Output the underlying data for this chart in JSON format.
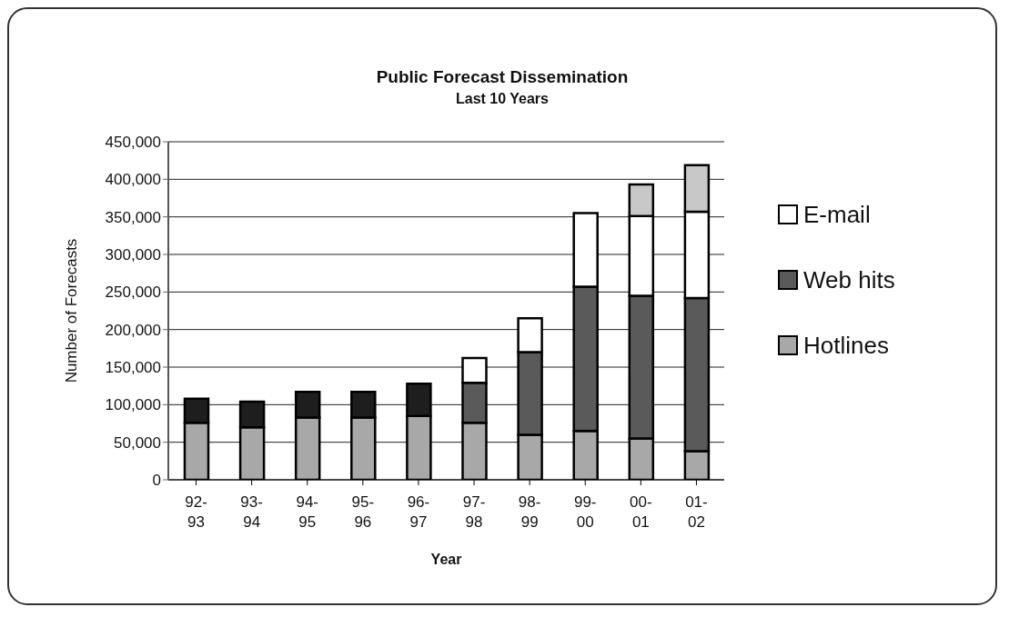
{
  "chart_data": {
    "type": "bar",
    "title": "Public Forecast Dissemination",
    "subtitle": "Last 10 Years",
    "xlabel": "Year",
    "ylabel": "Number of Forecasts",
    "categories": [
      "92-93",
      "93-94",
      "94-95",
      "95-96",
      "96-97",
      "97-98",
      "98-99",
      "99-00",
      "00-01",
      "01-02"
    ],
    "stacked": true,
    "series": [
      {
        "name": "Hotlines",
        "color": "#a8a8a8",
        "values": [
          76000,
          70000,
          83000,
          83000,
          85000,
          76000,
          60000,
          65000,
          55000,
          38000
        ]
      },
      {
        "color": "#1e1e1e",
        "values": [
          32000,
          34000,
          34000,
          34000,
          43000,
          null,
          null,
          null,
          null,
          null
        ]
      },
      {
        "name": "Web hits",
        "color": "#5a5a5a",
        "values": [
          null,
          null,
          null,
          null,
          null,
          53000,
          110000,
          192000,
          190000,
          204000
        ]
      },
      {
        "name": "E-mail",
        "color": "#ffffff",
        "values": [
          null,
          null,
          null,
          null,
          null,
          33000,
          45000,
          98000,
          106000,
          115000
        ]
      },
      {
        "color": "#c8c8c8",
        "values": [
          null,
          null,
          null,
          null,
          null,
          null,
          null,
          null,
          42000,
          62000
        ]
      }
    ],
    "ylim": [
      0,
      450000
    ],
    "yticks": [
      0,
      {
        "value": 50000,
        "label": "50,000"
      },
      {
        "value": 100000,
        "label": "100,000"
      },
      {
        "value": 150000,
        "label": "150,000"
      },
      {
        "value": 200000,
        "label": "200,000"
      },
      {
        "value": 250000,
        "label": "250,000"
      },
      {
        "value": 300000,
        "label": "300,000"
      },
      {
        "value": 350000,
        "label": "350,000"
      },
      {
        "value": 400000,
        "label": "400,000"
      },
      {
        "value": 450000,
        "label": "450,000"
      }
    ],
    "grid": "y",
    "legend": "right"
  }
}
